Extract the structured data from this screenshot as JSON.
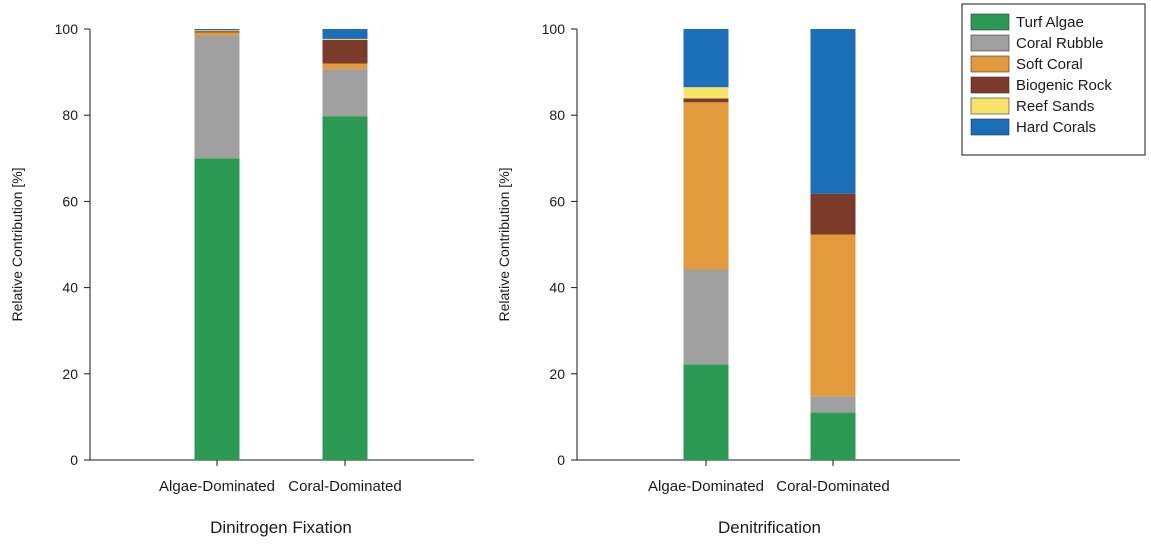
{
  "legend": {
    "items": [
      {
        "label": "Turf Algae",
        "color": "#2a9a55"
      },
      {
        "label": "Coral Rubble",
        "color": "#a0a0a0"
      },
      {
        "label": "Soft Coral",
        "color": "#e39a3c"
      },
      {
        "label": "Biogenic Rock",
        "color": "#7a3b2a"
      },
      {
        "label": "Reef Sands",
        "color": "#f5e36a"
      },
      {
        "label": "Hard Corals",
        "color": "#1a6fb8"
      }
    ]
  },
  "chart_data": [
    {
      "type": "bar",
      "stacked": true,
      "title": "Dinitrogen Fixation",
      "xlabel": "",
      "ylabel": "Relative Contribution [%]",
      "ylim": [
        0,
        100
      ],
      "yticks": [
        "0",
        "20",
        "40",
        "60",
        "80",
        "100"
      ],
      "categories": [
        "Algae-Dominated",
        "Coral-Dominated"
      ],
      "series": [
        {
          "name": "Turf Algae",
          "values": [
            70,
            79.7
          ]
        },
        {
          "name": "Coral Rubble",
          "values": [
            28.5,
            11
          ]
        },
        {
          "name": "Soft Coral",
          "values": [
            0.7,
            1.3
          ]
        },
        {
          "name": "Biogenic Rock",
          "values": [
            0.3,
            5.5
          ]
        },
        {
          "name": "Reef Sands",
          "values": [
            0.2,
            0.2
          ]
        },
        {
          "name": "Hard Corals",
          "values": [
            0.3,
            2.3
          ]
        }
      ]
    },
    {
      "type": "bar",
      "stacked": true,
      "title": "Denitrification",
      "xlabel": "",
      "ylabel": "Relative Contribution [%]",
      "ylim": [
        0,
        100
      ],
      "yticks": [
        "0",
        "20",
        "40",
        "60",
        "80",
        "100"
      ],
      "categories": [
        "Algae-Dominated",
        "Coral-Dominated"
      ],
      "series": [
        {
          "name": "Turf Algae",
          "values": [
            22.2,
            11
          ]
        },
        {
          "name": "Coral Rubble",
          "values": [
            22,
            3.8
          ]
        },
        {
          "name": "Soft Coral",
          "values": [
            38.8,
            37.5
          ]
        },
        {
          "name": "Biogenic Rock",
          "values": [
            0.9,
            9.5
          ]
        },
        {
          "name": "Reef Sands",
          "values": [
            2.6,
            0
          ]
        },
        {
          "name": "Hard Corals",
          "values": [
            13.5,
            38.2
          ]
        }
      ]
    }
  ]
}
